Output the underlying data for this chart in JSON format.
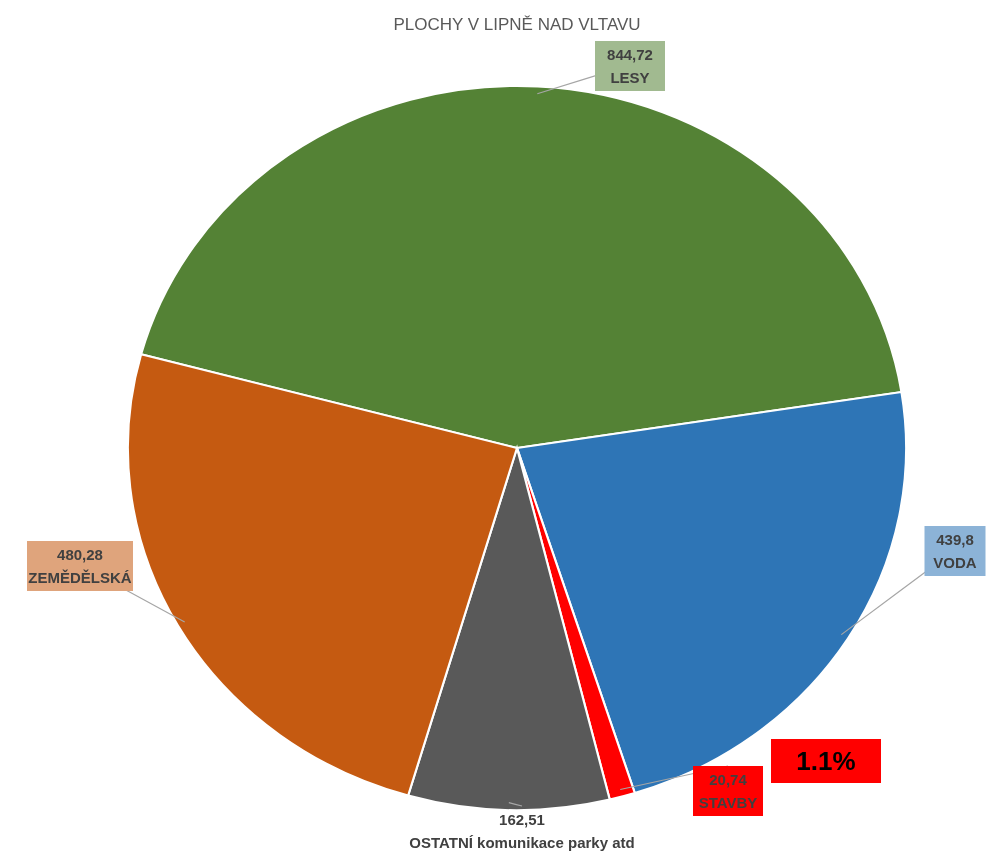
{
  "chart_data": {
    "type": "pie",
    "title": "PLOCHY V LIPNĚ NAD VLTAVU",
    "categories": [
      "LESY",
      "VODA",
      "STAVBY",
      "OSTATNÍ komunikace parky atd",
      "ZEMĚDĚLSKÁ"
    ],
    "values": [
      844.72,
      439.8,
      20.74,
      162.51,
      480.28
    ],
    "value_labels": [
      "844,72",
      "439,8",
      "20,74",
      "162,51",
      "480,28"
    ],
    "colors": [
      "#548235",
      "#2e75b6",
      "#ff0000",
      "#595959",
      "#c55a11"
    ],
    "annotations": [
      "1.1%"
    ]
  }
}
